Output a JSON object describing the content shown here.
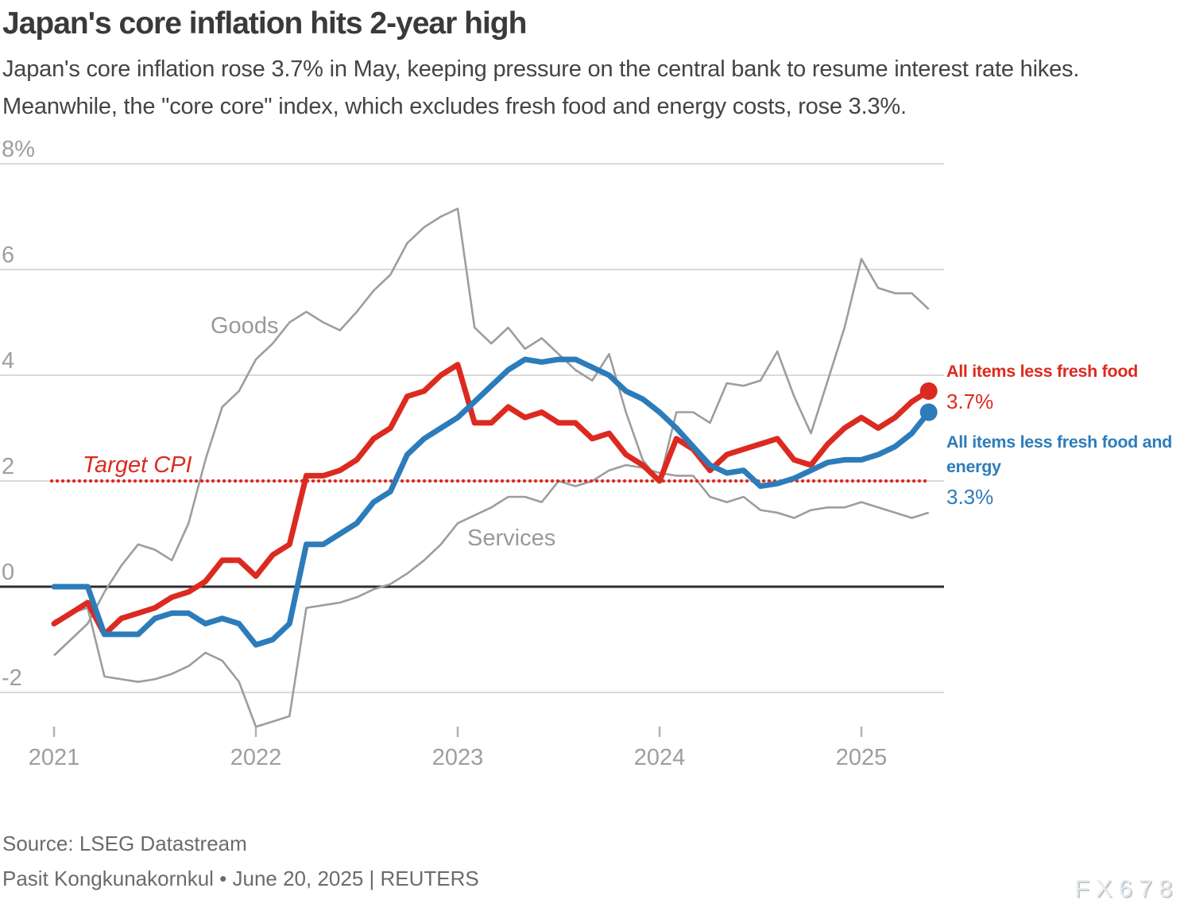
{
  "header": {
    "title": "Japan's core inflation hits 2-year high",
    "subtitle": "Japan's core inflation rose 3.7% in May, keeping pressure on the central bank to resume interest rate hikes. Meanwhile, the \"core core\" index, which excludes fresh food and energy costs, rose 3.3%."
  },
  "colors": {
    "red": "#dc2a20",
    "blue": "#2d7cba",
    "gray_line": "#9d9d9d",
    "grid_line": "#d5d5d5",
    "zero_line": "#2d2d2d",
    "axis_text": "#9e9e9e",
    "annotation_gray": "#999999"
  },
  "footer": {
    "source": "Source: LSEG Datastream",
    "byline": "Pasit Kongkunakornkul • June 20, 2025 | REUTERS",
    "watermark": "FX678"
  },
  "chart_data": {
    "type": "line",
    "title": "Japan's core inflation hits 2-year high",
    "xlabel": "",
    "ylabel": "",
    "grid": true,
    "legend_position": "right-annotations",
    "x_monthly_start": "2021-01",
    "x_monthly_end": "2025-05",
    "x_ticks": [
      "2021",
      "2022",
      "2023",
      "2024",
      "2025"
    ],
    "y_ticks": [
      {
        "label": "8%",
        "value": 8
      },
      {
        "label": "6",
        "value": 6
      },
      {
        "label": "4",
        "value": 4
      },
      {
        "label": "2",
        "value": 2
      },
      {
        "label": "0",
        "value": 0
      },
      {
        "label": "-2",
        "value": -2
      }
    ],
    "ylim": [
      -3.3,
      8.4
    ],
    "target": {
      "label": "Target CPI",
      "value": 2,
      "color": "#dc2a20"
    },
    "series": [
      {
        "id": "core",
        "name": "All items less fresh food",
        "end_value_label": "3.7%",
        "color": "#dc2a20",
        "values": [
          -0.7,
          -0.5,
          -0.3,
          -0.9,
          -0.6,
          -0.5,
          -0.4,
          -0.2,
          -0.1,
          0.1,
          0.5,
          0.5,
          0.2,
          0.6,
          0.8,
          2.1,
          2.1,
          2.2,
          2.4,
          2.8,
          3.0,
          3.6,
          3.7,
          4.0,
          4.2,
          3.1,
          3.1,
          3.4,
          3.2,
          3.3,
          3.1,
          3.1,
          2.8,
          2.9,
          2.5,
          2.3,
          2.0,
          2.8,
          2.6,
          2.2,
          2.5,
          2.6,
          2.7,
          2.8,
          2.4,
          2.3,
          2.7,
          3.0,
          3.2,
          3.0,
          3.2,
          3.5,
          3.7
        ]
      },
      {
        "id": "corecore",
        "name": "All items less fresh food and energy",
        "end_value_label": "3.3%",
        "color": "#2d7cba",
        "values": [
          0.0,
          0.0,
          0.0,
          -0.9,
          -0.9,
          -0.9,
          -0.6,
          -0.5,
          -0.5,
          -0.7,
          -0.6,
          -0.7,
          -1.1,
          -1.0,
          -0.7,
          0.8,
          0.8,
          1.0,
          1.2,
          1.6,
          1.8,
          2.5,
          2.8,
          3.0,
          3.2,
          3.5,
          3.8,
          4.1,
          4.3,
          4.25,
          4.3,
          4.3,
          4.15,
          4.0,
          3.7,
          3.55,
          3.3,
          3.0,
          2.65,
          2.3,
          2.15,
          2.2,
          1.9,
          1.95,
          2.05,
          2.2,
          2.35,
          2.4,
          2.4,
          2.5,
          2.65,
          2.9,
          3.3
        ]
      },
      {
        "id": "goods",
        "name": "Goods",
        "color": "#9d9d9d",
        "values": [
          -1.3,
          -1.0,
          -0.7,
          -0.1,
          0.4,
          0.8,
          0.7,
          0.5,
          1.2,
          2.4,
          3.4,
          3.7,
          4.3,
          4.6,
          5.0,
          5.2,
          5.0,
          4.85,
          5.2,
          5.6,
          5.9,
          6.5,
          6.8,
          7.0,
          7.15,
          4.9,
          4.6,
          4.9,
          4.5,
          4.7,
          4.4,
          4.1,
          3.9,
          4.4,
          3.3,
          2.4,
          2.0,
          3.3,
          3.3,
          3.1,
          3.85,
          3.8,
          3.9,
          4.45,
          3.6,
          2.9,
          3.9,
          4.9,
          6.2,
          5.65,
          5.55,
          5.55,
          5.25
        ]
      },
      {
        "id": "services",
        "name": "Services",
        "color": "#9d9d9d",
        "values": [
          -0.65,
          -0.5,
          -0.4,
          -1.7,
          -1.75,
          -1.8,
          -1.75,
          -1.65,
          -1.5,
          -1.25,
          -1.4,
          -1.8,
          -2.65,
          -2.55,
          -2.45,
          -0.4,
          -0.35,
          -0.3,
          -0.2,
          -0.05,
          0.05,
          0.25,
          0.5,
          0.8,
          1.2,
          1.35,
          1.5,
          1.7,
          1.7,
          1.6,
          2.0,
          1.9,
          2.0,
          2.2,
          2.3,
          2.25,
          2.15,
          2.1,
          2.1,
          1.7,
          1.6,
          1.7,
          1.45,
          1.4,
          1.3,
          1.45,
          1.5,
          1.5,
          1.6,
          1.5,
          1.4,
          1.3,
          1.4
        ]
      }
    ]
  }
}
